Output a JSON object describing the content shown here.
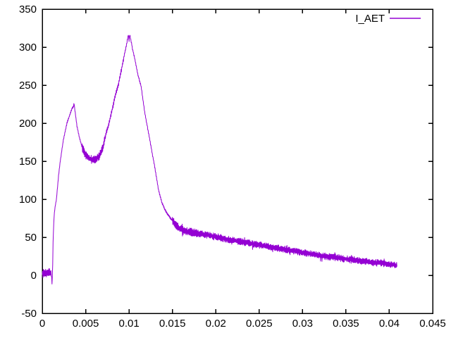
{
  "chart_data": {
    "type": "line",
    "title": "",
    "xlabel": "",
    "ylabel": "",
    "xlim": [
      0,
      0.045
    ],
    "ylim": [
      -50,
      350
    ],
    "grid": false,
    "legend": {
      "label": "I_AET",
      "position": "top-right-inside"
    },
    "x_ticks": {
      "values": [
        0,
        0.005,
        0.01,
        0.015,
        0.02,
        0.025,
        0.03,
        0.035,
        0.04,
        0.045
      ],
      "labels": [
        "0",
        "0.005",
        "0.01",
        "0.015",
        "0.02",
        "0.025",
        "0.03",
        "0.035",
        "0.04",
        "0.045"
      ]
    },
    "y_ticks": {
      "values": [
        -50,
        0,
        50,
        100,
        150,
        200,
        250,
        300,
        350
      ],
      "labels": [
        "-50",
        "0",
        "50",
        "100",
        "150",
        "200",
        "250",
        "300",
        "350"
      ]
    },
    "series": [
      {
        "name": "I_AET",
        "color": "#9400d3",
        "x_start": 0,
        "x_end": 0.0409,
        "sample_step": 4e-05,
        "anchors": [
          [
            0,
            3
          ],
          [
            0.00105,
            3
          ],
          [
            0.00113,
            -13
          ],
          [
            0.0012,
            15
          ],
          [
            0.00125,
            50
          ],
          [
            0.00135,
            75
          ],
          [
            0.00145,
            88
          ],
          [
            0.00163,
            100
          ],
          [
            0.00185,
            128
          ],
          [
            0.00207,
            150
          ],
          [
            0.0024,
            176
          ],
          [
            0.00284,
            200
          ],
          [
            0.0032,
            212
          ],
          [
            0.00345,
            220
          ],
          [
            0.0036,
            222
          ],
          [
            0.00366,
            227
          ],
          [
            0.00375,
            218
          ],
          [
            0.004,
            196
          ],
          [
            0.0043,
            180
          ],
          [
            0.0046,
            168
          ],
          [
            0.005,
            158
          ],
          [
            0.0054,
            154
          ],
          [
            0.0058,
            152
          ],
          [
            0.0062,
            153
          ],
          [
            0.0066,
            157
          ],
          [
            0.007,
            168
          ],
          [
            0.0074,
            189
          ],
          [
            0.0077,
            200
          ],
          [
            0.0081,
            220
          ],
          [
            0.0085,
            240
          ],
          [
            0.0088,
            252
          ],
          [
            0.0092,
            275
          ],
          [
            0.0095,
            292
          ],
          [
            0.0097,
            303
          ],
          [
            0.00985,
            312
          ],
          [
            0.00993,
            317
          ],
          [
            0.01,
            308
          ],
          [
            0.01008,
            317
          ],
          [
            0.0102,
            310
          ],
          [
            0.0104,
            298
          ],
          [
            0.0106,
            288
          ],
          [
            0.011,
            265
          ],
          [
            0.0114,
            248
          ],
          [
            0.0118,
            215
          ],
          [
            0.0122,
            190
          ],
          [
            0.0126,
            165
          ],
          [
            0.013,
            140
          ],
          [
            0.0134,
            112
          ],
          [
            0.0138,
            95
          ],
          [
            0.0142,
            85
          ],
          [
            0.0146,
            78
          ],
          [
            0.015,
            72
          ],
          [
            0.0154,
            66
          ],
          [
            0.0158,
            62
          ],
          [
            0.0162,
            59
          ],
          [
            0.017,
            57
          ],
          [
            0.018,
            55
          ],
          [
            0.019,
            53
          ],
          [
            0.02,
            51
          ],
          [
            0.022,
            46
          ],
          [
            0.024,
            42
          ],
          [
            0.026,
            38
          ],
          [
            0.028,
            34
          ],
          [
            0.03,
            30
          ],
          [
            0.032,
            26
          ],
          [
            0.034,
            23
          ],
          [
            0.036,
            20
          ],
          [
            0.038,
            17
          ],
          [
            0.04,
            15
          ],
          [
            0.0409,
            13
          ]
        ],
        "noise_segments": [
          [
            0,
            0.00105,
            6
          ],
          [
            0.00105,
            0.0046,
            1.2
          ],
          [
            0.0046,
            0.0072,
            5.5
          ],
          [
            0.0072,
            0.0094,
            3
          ],
          [
            0.0094,
            0.015,
            1.5
          ],
          [
            0.015,
            0.0178,
            5.5
          ],
          [
            0.0178,
            0.0409,
            4.5
          ]
        ]
      }
    ]
  }
}
